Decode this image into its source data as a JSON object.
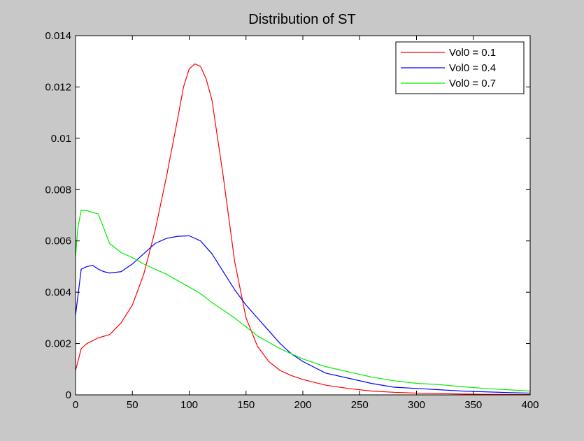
{
  "chart_data": {
    "type": "line",
    "title": "Distribution of ST",
    "xlabel": "",
    "ylabel": "",
    "xlim": [
      0,
      400
    ],
    "ylim": [
      0,
      0.014
    ],
    "xticks": [
      0,
      50,
      100,
      150,
      200,
      250,
      300,
      350,
      400
    ],
    "yticks": [
      0,
      0.002,
      0.004,
      0.006,
      0.008,
      0.01,
      0.012,
      0.014
    ],
    "xtick_labels": [
      "0",
      "50",
      "100",
      "150",
      "200",
      "250",
      "300",
      "350",
      "400"
    ],
    "ytick_labels": [
      "0",
      "0.002",
      "0.004",
      "0.006",
      "0.008",
      "0.01",
      "0.012",
      "0.014"
    ],
    "grid": false,
    "legend_position": "top-right",
    "series": [
      {
        "name": "Vol0 = 0.1",
        "color": "#ff0000",
        "x": [
          0,
          5,
          10,
          20,
          30,
          40,
          50,
          60,
          70,
          80,
          90,
          95,
          100,
          105,
          110,
          115,
          120,
          130,
          140,
          150,
          160,
          170,
          180,
          190,
          200,
          220,
          240,
          260,
          280,
          300,
          330,
          360,
          400
        ],
        "y": [
          0.00095,
          0.0018,
          0.002,
          0.00222,
          0.00235,
          0.0028,
          0.0035,
          0.0047,
          0.0064,
          0.0085,
          0.0108,
          0.012,
          0.0127,
          0.0129,
          0.0128,
          0.0123,
          0.0115,
          0.0085,
          0.0052,
          0.003,
          0.0019,
          0.0013,
          0.00095,
          0.00075,
          0.0006,
          0.00038,
          0.00025,
          0.00015,
          0.0001,
          7e-05,
          4e-05,
          2e-05,
          1e-05
        ]
      },
      {
        "name": "Vol0 = 0.4",
        "color": "#0000ff",
        "x": [
          0,
          5,
          10,
          15,
          20,
          25,
          30,
          40,
          50,
          60,
          70,
          80,
          90,
          100,
          110,
          120,
          130,
          140,
          150,
          160,
          170,
          180,
          190,
          200,
          220,
          240,
          260,
          280,
          300,
          320,
          340,
          360,
          380,
          400
        ],
        "y": [
          0.0031,
          0.0049,
          0.005,
          0.00505,
          0.0049,
          0.0048,
          0.00475,
          0.0048,
          0.0051,
          0.0055,
          0.0059,
          0.0061,
          0.00618,
          0.0062,
          0.006,
          0.0055,
          0.0048,
          0.0041,
          0.0035,
          0.003,
          0.0025,
          0.002,
          0.0016,
          0.0013,
          0.00085,
          0.00065,
          0.00045,
          0.0003,
          0.00025,
          0.0002,
          0.00015,
          0.00012,
          9e-05,
          7e-05
        ]
      },
      {
        "name": "Vol0 = 0.7",
        "color": "#00ee00",
        "x": [
          0,
          2,
          5,
          10,
          20,
          30,
          40,
          50,
          60,
          80,
          100,
          110,
          120,
          140,
          160,
          180,
          200,
          220,
          240,
          260,
          280,
          300,
          320,
          340,
          360,
          380,
          400
        ],
        "y": [
          0.0054,
          0.0065,
          0.0072,
          0.00718,
          0.00705,
          0.0059,
          0.00555,
          0.00535,
          0.0051,
          0.0047,
          0.0042,
          0.00395,
          0.0036,
          0.003,
          0.0023,
          0.0018,
          0.0014,
          0.0011,
          0.0009,
          0.0007,
          0.00055,
          0.00045,
          0.0004,
          0.00032,
          0.00025,
          0.0002,
          0.00015
        ]
      }
    ]
  }
}
